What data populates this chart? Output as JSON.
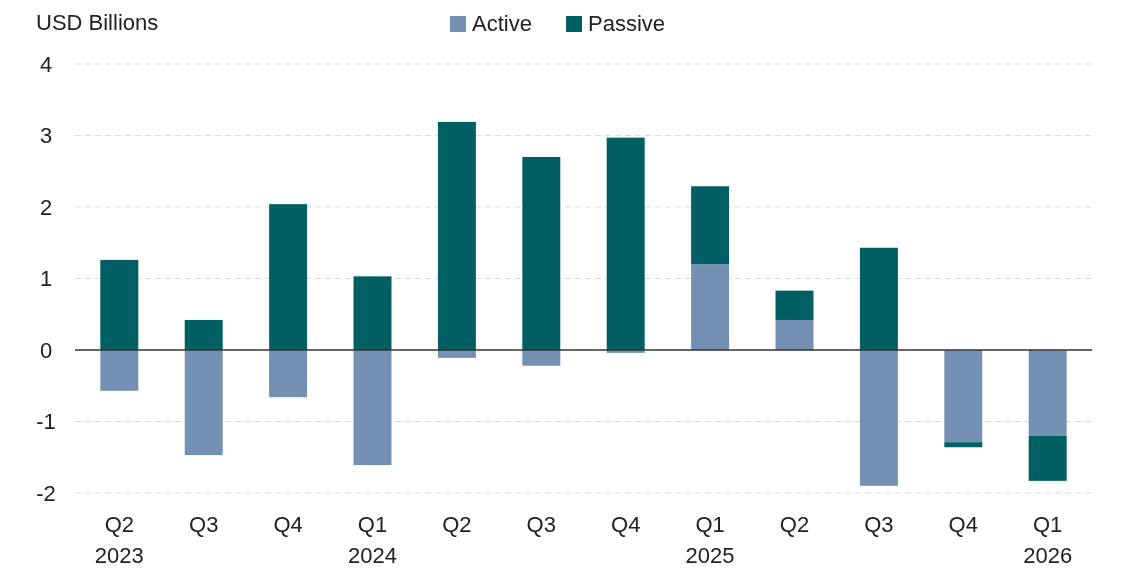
{
  "chart_data": {
    "type": "bar",
    "stacked": true,
    "ylabel": "USD Billions",
    "categories": [
      "Q2\n2023",
      "Q3",
      "Q4",
      "Q1\n2024",
      "Q2",
      "Q3",
      "Q4",
      "Q1\n2025",
      "Q2",
      "Q3",
      "Q4",
      "Q1\n2026"
    ],
    "series": [
      {
        "name": "Active",
        "color": "#7491b4",
        "values": [
          -0.57,
          -1.47,
          -0.66,
          -1.61,
          -0.11,
          -0.22,
          -0.04,
          1.2,
          0.42,
          -1.9,
          -1.29,
          -1.2
        ]
      },
      {
        "name": "Passive",
        "color": "#005f63",
        "values": [
          1.26,
          0.42,
          2.04,
          1.03,
          3.19,
          2.7,
          2.97,
          1.09,
          0.41,
          1.43,
          -0.07,
          -0.63
        ]
      }
    ],
    "ylim": [
      -2,
      4
    ],
    "yticks": [
      -2,
      -1,
      0,
      1,
      2,
      3,
      4
    ],
    "grid": "y",
    "legend": "top"
  }
}
